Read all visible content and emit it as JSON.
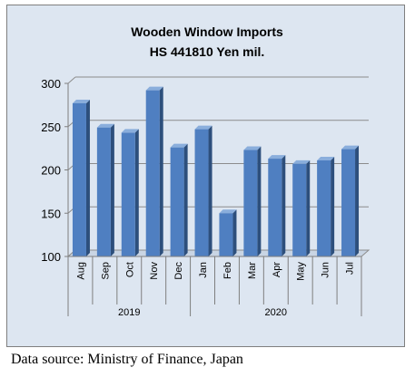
{
  "chart_data": {
    "type": "bar",
    "title": "Wooden Window Imports",
    "subtitle": "HS 441810 Yen mil.",
    "categories": [
      "Aug",
      "Sep",
      "Oct",
      "Nov",
      "Dec",
      "Jan",
      "Feb",
      "Mar",
      "Apr",
      "May",
      "Jun",
      "Jul"
    ],
    "groups": [
      {
        "label": "2019",
        "count": 5
      },
      {
        "label": "2020",
        "count": 7
      }
    ],
    "values": [
      277,
      249,
      243,
      292,
      226,
      247,
      150,
      223,
      213,
      207,
      211,
      224
    ],
    "ylim": [
      100,
      300
    ],
    "yticks": [
      100,
      150,
      200,
      250,
      300
    ],
    "grid": true,
    "legend": "none",
    "xlabel": "",
    "ylabel": ""
  },
  "colors": {
    "bar_front": "#4f7fc1",
    "bar_side": "#2d4f7c",
    "bar_top": "#8aaedc",
    "plot_background": "#dde6f1",
    "gridline": "#8c8c8c",
    "text": "#000000"
  },
  "source": "Data source: Ministry of Finance, Japan"
}
